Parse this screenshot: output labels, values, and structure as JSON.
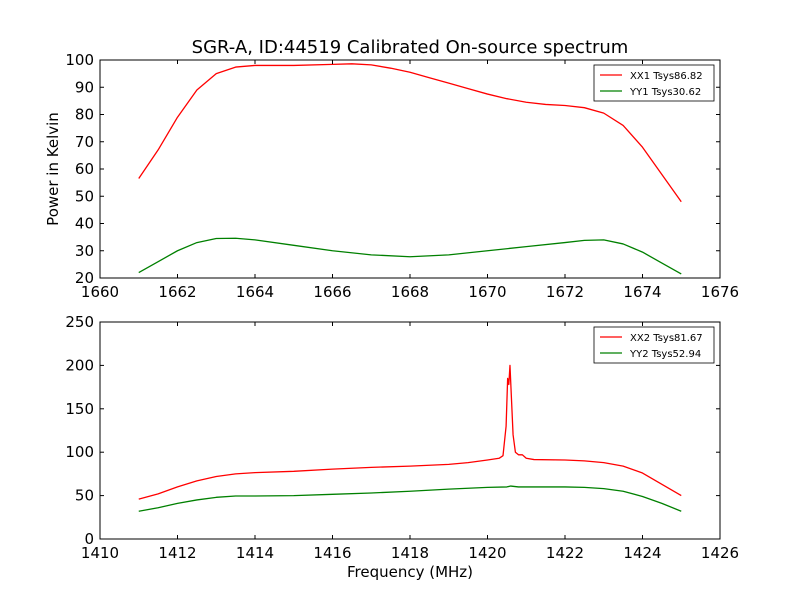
{
  "figure": {
    "title": "SGR-A, ID:44519 Calibrated On-source spectrum"
  },
  "chart_data": [
    {
      "type": "line",
      "title": "SGR-A, ID:44519 Calibrated On-source spectrum",
      "xlabel": "",
      "ylabel": "Power in Kelvin",
      "xlim": [
        1660,
        1676
      ],
      "ylim": [
        20,
        100
      ],
      "xticks": [
        1660,
        1662,
        1664,
        1666,
        1668,
        1670,
        1672,
        1674,
        1676
      ],
      "yticks": [
        20,
        30,
        40,
        50,
        60,
        70,
        80,
        90,
        100
      ],
      "legend_position": "top-right",
      "series": [
        {
          "name": "XX1 Tsys86.82",
          "color": "#ff0000",
          "points": [
            [
              1661.0,
              56.5
            ],
            [
              1661.5,
              67
            ],
            [
              1662.0,
              79
            ],
            [
              1662.5,
              89
            ],
            [
              1663.0,
              95
            ],
            [
              1663.5,
              97.4
            ],
            [
              1664.0,
              98
            ],
            [
              1665.0,
              98
            ],
            [
              1666.0,
              98.4
            ],
            [
              1666.5,
              98.6
            ],
            [
              1667.0,
              98.2
            ],
            [
              1667.5,
              97
            ],
            [
              1668.0,
              95.5
            ],
            [
              1668.5,
              93.5
            ],
            [
              1669.0,
              91.5
            ],
            [
              1669.5,
              89.5
            ],
            [
              1670.0,
              87.5
            ],
            [
              1670.5,
              85.8
            ],
            [
              1671.0,
              84.5
            ],
            [
              1671.5,
              83.7
            ],
            [
              1672.0,
              83.3
            ],
            [
              1672.5,
              82.5
            ],
            [
              1673.0,
              80.5
            ],
            [
              1673.5,
              76
            ],
            [
              1674.0,
              68
            ],
            [
              1674.5,
              58
            ],
            [
              1675.0,
              48
            ]
          ]
        },
        {
          "name": "YY1 Tsys30.62",
          "color": "#008000",
          "points": [
            [
              1661.0,
              22
            ],
            [
              1661.5,
              26
            ],
            [
              1662.0,
              30
            ],
            [
              1662.5,
              33
            ],
            [
              1663.0,
              34.5
            ],
            [
              1663.5,
              34.6
            ],
            [
              1664.0,
              34
            ],
            [
              1665.0,
              32
            ],
            [
              1666.0,
              30
            ],
            [
              1667.0,
              28.5
            ],
            [
              1668.0,
              27.8
            ],
            [
              1669.0,
              28.5
            ],
            [
              1670.0,
              30
            ],
            [
              1671.0,
              31.5
            ],
            [
              1672.0,
              33
            ],
            [
              1672.5,
              33.8
            ],
            [
              1673.0,
              34
            ],
            [
              1673.5,
              32.5
            ],
            [
              1674.0,
              29.5
            ],
            [
              1674.5,
              25.5
            ],
            [
              1675.0,
              21.5
            ]
          ]
        }
      ]
    },
    {
      "type": "line",
      "xlabel": "Frequency (MHz)",
      "ylabel": "",
      "xlim": [
        1410,
        1426
      ],
      "ylim": [
        0,
        250
      ],
      "xticks": [
        1410,
        1412,
        1414,
        1416,
        1418,
        1420,
        1422,
        1424,
        1426
      ],
      "yticks": [
        0,
        50,
        100,
        150,
        200,
        250
      ],
      "legend_position": "top-right",
      "series": [
        {
          "name": "XX2 Tsys81.67",
          "color": "#ff0000",
          "points": [
            [
              1411.0,
              46
            ],
            [
              1411.5,
              52
            ],
            [
              1412.0,
              60
            ],
            [
              1412.5,
              67
            ],
            [
              1413.0,
              72
            ],
            [
              1413.5,
              75
            ],
            [
              1414.0,
              76.5
            ],
            [
              1415.0,
              78
            ],
            [
              1416.0,
              80.5
            ],
            [
              1417.0,
              82.5
            ],
            [
              1418.0,
              84
            ],
            [
              1419.0,
              86
            ],
            [
              1419.5,
              88
            ],
            [
              1420.0,
              91
            ],
            [
              1420.3,
              93
            ],
            [
              1420.4,
              96
            ],
            [
              1420.48,
              130
            ],
            [
              1420.52,
              185
            ],
            [
              1420.55,
              178
            ],
            [
              1420.58,
              200
            ],
            [
              1420.62,
              160
            ],
            [
              1420.66,
              120
            ],
            [
              1420.72,
              100
            ],
            [
              1420.8,
              97
            ],
            [
              1420.9,
              97
            ],
            [
              1421.0,
              93
            ],
            [
              1421.2,
              91.5
            ],
            [
              1422.0,
              91
            ],
            [
              1422.5,
              90
            ],
            [
              1423.0,
              88
            ],
            [
              1423.5,
              84
            ],
            [
              1424.0,
              76
            ],
            [
              1424.5,
              63
            ],
            [
              1425.0,
              50
            ]
          ]
        },
        {
          "name": "YY2 Tsys52.94",
          "color": "#008000",
          "points": [
            [
              1411.0,
              32
            ],
            [
              1411.5,
              36
            ],
            [
              1412.0,
              41
            ],
            [
              1412.5,
              45
            ],
            [
              1413.0,
              48
            ],
            [
              1413.5,
              49.5
            ],
            [
              1414.0,
              49.5
            ],
            [
              1415.0,
              50
            ],
            [
              1416.0,
              51.5
            ],
            [
              1417.0,
              53
            ],
            [
              1418.0,
              55
            ],
            [
              1419.0,
              57.5
            ],
            [
              1420.0,
              59.5
            ],
            [
              1420.5,
              60
            ],
            [
              1420.6,
              61
            ],
            [
              1420.8,
              60
            ],
            [
              1421.0,
              60
            ],
            [
              1422.0,
              60
            ],
            [
              1422.5,
              59.5
            ],
            [
              1423.0,
              58
            ],
            [
              1423.5,
              55
            ],
            [
              1424.0,
              49
            ],
            [
              1424.5,
              41
            ],
            [
              1425.0,
              32
            ]
          ]
        }
      ]
    }
  ]
}
